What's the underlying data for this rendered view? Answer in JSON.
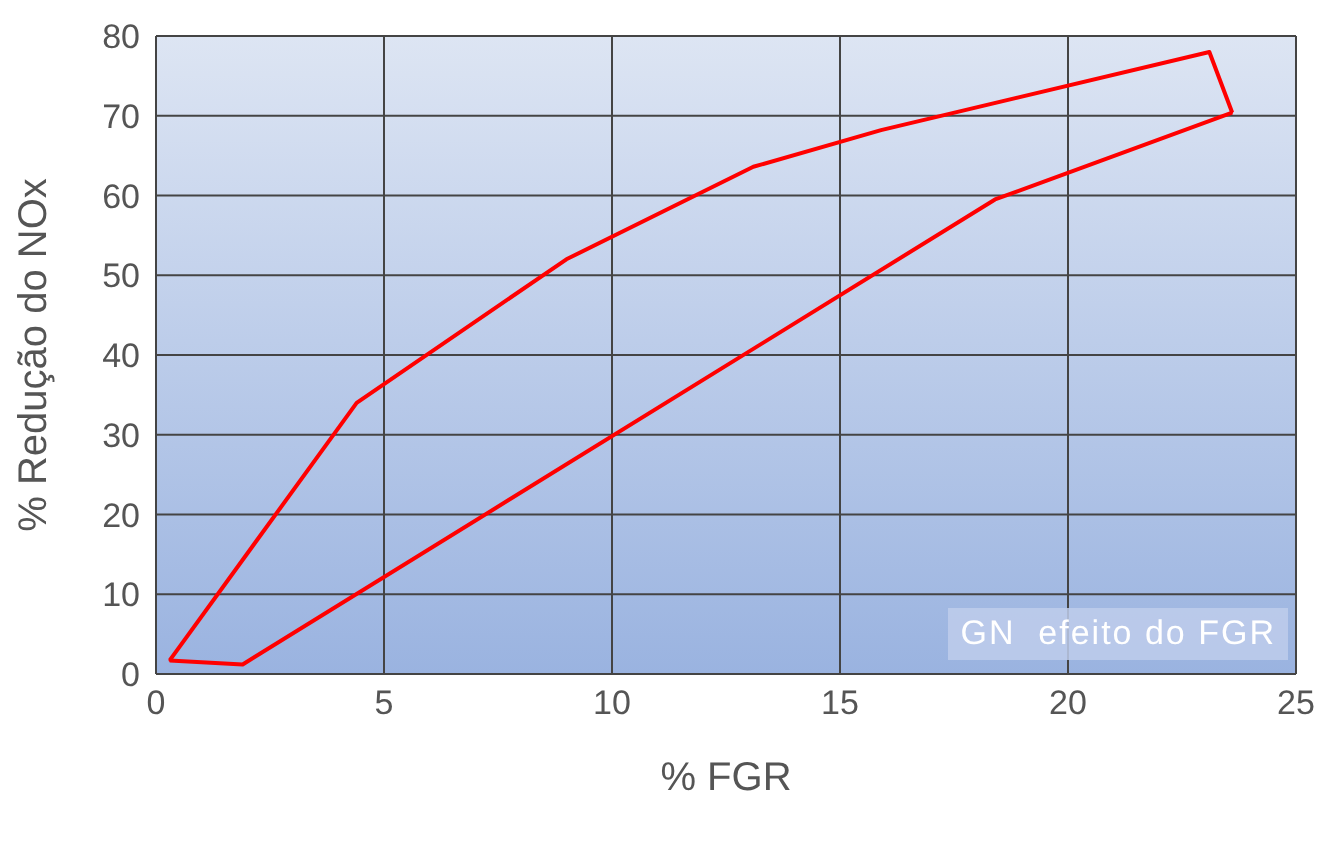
{
  "chart_data": {
    "type": "line",
    "xlabel": "% FGR",
    "ylabel": "% Redução do NOx",
    "series": [
      {
        "color": "#ff0000",
        "x": [
          0.3,
          4.4,
          9,
          13.1,
          15.9,
          23.1,
          23.6
        ],
        "values": [
          1.7,
          34,
          52,
          63.6,
          68.2,
          78,
          70.4
        ]
      },
      {
        "color": "#ff0000",
        "x": [
          0.3,
          1.9,
          18.4,
          23.6
        ],
        "values": [
          1.7,
          1.2,
          59.5,
          70.4
        ]
      }
    ],
    "xlim": [
      0,
      25
    ],
    "xticks": [
      0,
      5,
      10,
      15,
      20,
      25
    ],
    "ylim": [
      0,
      80
    ],
    "yticks": [
      0,
      10,
      20,
      30,
      40,
      50,
      60,
      70,
      80
    ],
    "grid": true,
    "marker": "none",
    "line_style": "solid",
    "legend": false,
    "annotations": [
      "GN  efeito do FGR"
    ]
  }
}
